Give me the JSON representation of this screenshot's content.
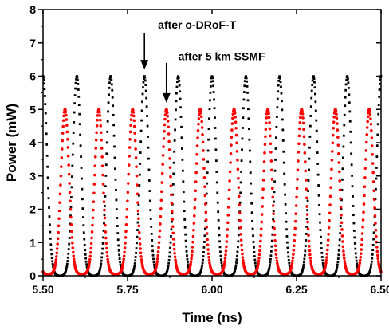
{
  "chart_data": {
    "type": "scatter",
    "xlabel": "Time (ns)",
    "ylabel": "Power (mW)",
    "xlim": [
      5.5,
      6.5
    ],
    "ylim": [
      0,
      8
    ],
    "x_ticks": [
      "5.50",
      "5.75",
      "6.00",
      "6.25",
      "6.50"
    ],
    "y_ticks": [
      "0",
      "1",
      "2",
      "3",
      "4",
      "5",
      "6",
      "7",
      "8"
    ],
    "grid": false,
    "legend": "none",
    "series": [
      {
        "color": "#000000",
        "pulse_peak": 6.0,
        "pulse_baseline": 0.0,
        "pulse_period_ns": 0.1,
        "pulse_peak_times": [
          5.5,
          5.6,
          5.7,
          5.8,
          5.9,
          6.0,
          6.1,
          6.2,
          6.3,
          6.4,
          6.5
        ],
        "pulse_width_ns": 0.012
      },
      {
        "color": "#ff0000",
        "pulse_peak": 5.0,
        "pulse_baseline": 0.05,
        "pulse_period_ns": 0.1,
        "pulse_peak_times": [
          5.465,
          5.565,
          5.665,
          5.765,
          5.865,
          5.965,
          6.065,
          6.165,
          6.265,
          6.365,
          6.465
        ],
        "pulse_width_ns": 0.012
      }
    ],
    "annotations": [
      {
        "text": "after o-DRoF-T",
        "x_label": 5.84,
        "y_label": 7.55,
        "arrow_x": 5.8,
        "arrow_from_y": 7.3,
        "arrow_to_y": 6.2
      },
      {
        "text": "after 5 km SSMF",
        "x_label": 5.9,
        "y_label": 6.6,
        "arrow_x": 5.865,
        "arrow_from_y": 6.4,
        "arrow_to_y": 5.2
      }
    ]
  }
}
